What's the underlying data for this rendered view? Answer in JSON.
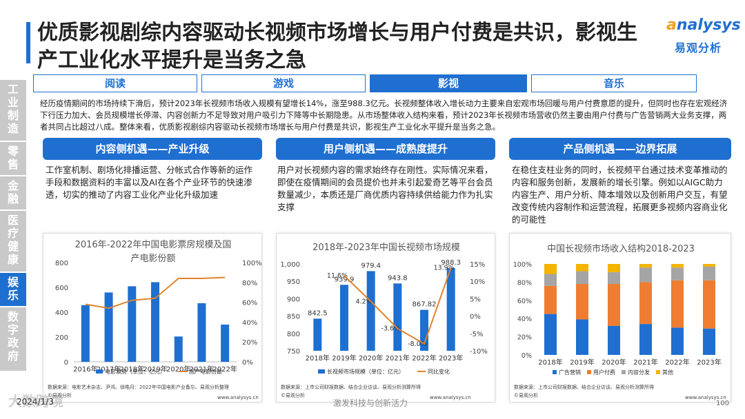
{
  "title": "优质影视剧综内容驱动长视频市场增长与用户付费是共识，影视生产工业化水平提升是当务之急",
  "logo": {
    "en": "nalysys",
    "en_a": "a",
    "cn": "易观分析"
  },
  "sidebar": [
    "工\n业\n制\n造",
    "零\n售",
    "金\n融",
    "医\n疗\n健\n康",
    "娱\n乐",
    "数\n字\n政\n府"
  ],
  "tabs": [
    "阅读",
    "游戏",
    "影视",
    "音乐"
  ],
  "intro": "经历疫情期间的市场持续下滑后，预计2023年长视频市场收入规模有望增长14%，涨至988.3亿元。长视频整体收入增长动力主要来自宏观市场回暖与用户付费意愿的提升，但同时也存在宏观经济下行压力加大、会员规模增长停滞、内容创新力不足导致对用户吸引力下降等中长期隐患。从市场整体收入结构来看，预计2023年长视频市场营收仍然主要由用户付费与广告营销两大业务支撑，两者共同占比超过八成。整体来看，优质影视剧综内容驱动长视频市场增长与用户付费是共识，影视生产工业化水平提升是当务之急。",
  "sections": [
    {
      "title": "内容侧机遇——产业升级",
      "body": "工作室机制、剧场化排播运营、分帐式合作等新的运作手段和数据资料的丰富以及AI在各个产业环节的快速渗透，切实的推动了内容工业化产业化升级加速"
    },
    {
      "title": "用户侧机遇——成熟度提升",
      "body": "用户对长视频内容的需求始终存在刚性。实际情况来看，即使在疫情期间的会员提价也并未引起爱奇艺等平台会员数量减少，本质还是厂商优质内容持续供给能力作为扎实支撑"
    },
    {
      "title": "产品侧机遇——边界拓展",
      "body": "在稳住支柱业务的同时，长视频平台通过技术变革推动的内容和服务创新，发展新的增长引擎。例如以AIGC助力内容生产、用户分析、降本增效以及创新用户交互，有望改变传统内容制作和运营流程，拓展更多视频内容商业化的可能性"
    }
  ],
  "panels": [
    {
      "source": "数据来源：电影艺术杂志、尹鸿、徐皓月：2022年中国电影产业备忘、易观分析整理",
      "logo_note": "©易观分析",
      "site": "www.analysys.cn"
    },
    {
      "source": "数据来源：上市公司财报数据、结合企业访谈、易观分析测算所得",
      "logo_note": "©易观分析",
      "site": "www.analysys.cn"
    },
    {
      "source": "数据来源：上市公司财报数据、结合企业访谈、易观分析测算所得",
      "logo_note": "©易观分析",
      "site": "www.analysys.cn"
    }
  ],
  "footer": {
    "year": "2024/1/3",
    "mid": "激发科技与创新活力",
    "page": "100",
    "watermark": "大数跨境"
  },
  "chart_data": [
    {
      "type": "bar",
      "title": "2016年-2022年中国电影票房规模及国产电影份额",
      "categories": [
        "2016年",
        "2017年",
        "2018年",
        "2019年",
        "2020年",
        "2021年",
        "2022年"
      ],
      "series": [
        {
          "name": "电影票房（单位：亿元）",
          "type": "bar",
          "axis": "left",
          "color": "#1f6fd1",
          "values": [
            457,
            559,
            609,
            642,
            204,
            472,
            300
          ]
        },
        {
          "name": "国产电影份额",
          "type": "line",
          "axis": "right",
          "color": "#e0832b",
          "values": [
            58,
            54,
            62,
            64,
            84,
            84,
            85
          ]
        }
      ],
      "ylim": [
        0,
        800
      ],
      "yticks": [
        0,
        200,
        400,
        600,
        800
      ],
      "y2lim": [
        0,
        100
      ],
      "y2ticks": [
        "0%",
        "20%",
        "40%",
        "60%",
        "80%",
        "100%"
      ],
      "legend": "bottom"
    },
    {
      "type": "bar",
      "title": "2018年-2023年中国长视频市场规模",
      "categories": [
        "2018年",
        "2019年",
        "2020年",
        "2021年",
        "2022年",
        "2023年"
      ],
      "series": [
        {
          "name": "长视频市场规模（单位：亿元）",
          "type": "bar",
          "axis": "left",
          "color": "#1f6fd1",
          "values": [
            842.5,
            939.9,
            979.4,
            943.8,
            867.82,
            988.3
          ],
          "labels": [
            "842.5",
            "939.9",
            "979.4",
            "943.8",
            "867.82",
            "988.3"
          ]
        },
        {
          "name": "同比变化",
          "type": "line",
          "axis": "right",
          "color": "#e0832b",
          "values": [
            null,
            11.6,
            4.2,
            -3.6,
            -8.0,
            13.9
          ],
          "labels": [
            "",
            "11.6%",
            "4.2%",
            "-3.6%",
            "-8.0%",
            "13.9%"
          ]
        }
      ],
      "ylim": [
        750,
        1000
      ],
      "yticks": [
        "750",
        "800",
        "850",
        "900",
        "950",
        "1,000"
      ],
      "y2lim": [
        -10,
        15
      ],
      "y2ticks": [
        "-10%",
        "-5%",
        "0%",
        "5%",
        "10%",
        "15%"
      ],
      "legend": "bottom"
    },
    {
      "type": "bar",
      "stacked": true,
      "title": "中国长视频市场收入结构2018-2023",
      "categories": [
        "2018年",
        "2019年",
        "2020年",
        "2021年",
        "2022年",
        "2023年"
      ],
      "series": [
        {
          "name": "广告营销",
          "color": "#1f6fd1",
          "values": [
            45,
            39,
            32,
            34,
            30,
            29
          ]
        },
        {
          "name": "用户付费",
          "color": "#ee7d31",
          "values": [
            31,
            39,
            46,
            46,
            52,
            53
          ]
        },
        {
          "name": "内容分发",
          "color": "#a5a5a5",
          "values": [
            13,
            14,
            13,
            16,
            14,
            15
          ]
        },
        {
          "name": "其他",
          "color": "#f4b400",
          "values": [
            11,
            8,
            9,
            4,
            4,
            3
          ]
        }
      ],
      "ylim": [
        0,
        100
      ],
      "yticks": [
        "0%",
        "20%",
        "40%",
        "60%",
        "80%",
        "100%"
      ],
      "legend": "bottom"
    }
  ]
}
